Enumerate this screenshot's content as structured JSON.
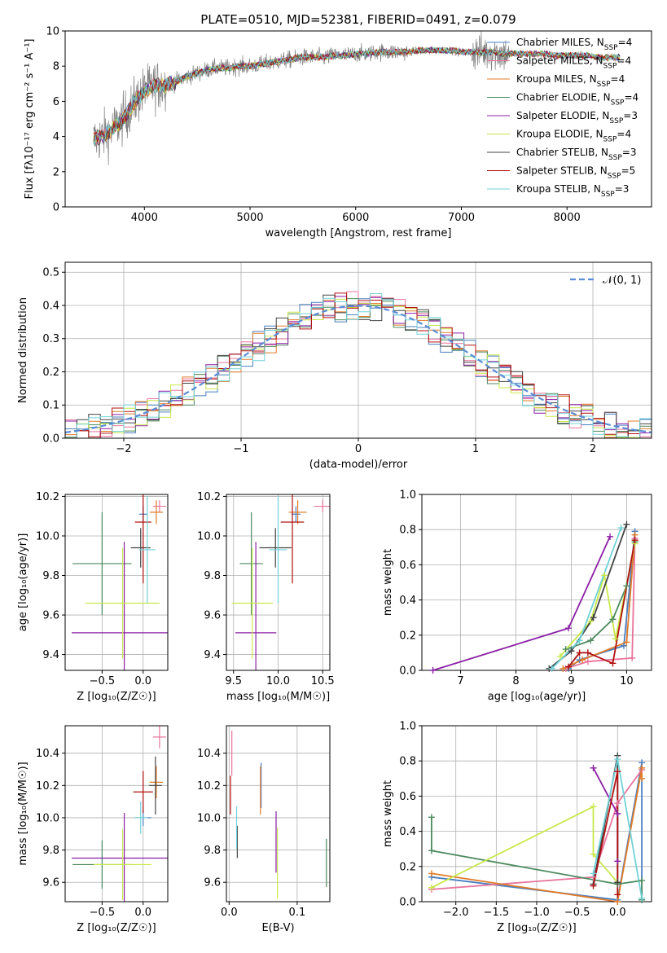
{
  "figure": {
    "title": "PLATE=0510, MJD=52381, FIBERID=0491, z=0.079"
  },
  "models": [
    {
      "name": "Chabrier MILES",
      "nssp": "4",
      "color": "#4a7fc1"
    },
    {
      "name": "Salpeter MILES",
      "nssp": "4",
      "color": "#e8739c"
    },
    {
      "name": "Kroupa MILES",
      "nssp": "4",
      "color": "#e07b2a"
    },
    {
      "name": "Chabrier ELODIE",
      "nssp": "4",
      "color": "#4d8a5f"
    },
    {
      "name": "Salpeter ELODIE",
      "nssp": "3",
      "color": "#8b1fa5"
    },
    {
      "name": "Kroupa ELODIE",
      "nssp": "4",
      "color": "#c8e84a"
    },
    {
      "name": "Chabrier STELIB",
      "nssp": "3",
      "color": "#444444"
    },
    {
      "name": "Salpeter STELIB",
      "nssp": "5",
      "color": "#b01010"
    },
    {
      "name": "Kroupa STELIB",
      "nssp": "3",
      "color": "#70d2d8"
    }
  ],
  "chart_data": [
    {
      "id": "spectrum",
      "type": "line",
      "title": "PLATE=0510, MJD=52381, FIBERID=0491, z=0.079",
      "xlabel": "wavelength [Angstrom, rest frame]",
      "ylabel": "Flux [fλ10⁻¹⁷ erg cm⁻² s⁻¹ A⁻¹]",
      "xlim": [
        3250,
        8800
      ],
      "ylim": [
        0,
        10
      ],
      "xticks": [
        4000,
        5000,
        6000,
        7000,
        8000
      ],
      "yticks": [
        0,
        2,
        4,
        6,
        8,
        10
      ],
      "legend": "top-right",
      "continuum": {
        "x": [
          3520,
          3600,
          3700,
          3800,
          3900,
          4000,
          4100,
          4200,
          4300,
          4400,
          4500,
          4600,
          4700,
          4800,
          4900,
          5000,
          5100,
          5200,
          5300,
          5400,
          5500,
          5600,
          5700,
          5800,
          5900,
          6000,
          6100,
          6200,
          6300,
          6400,
          6500,
          6600,
          6700,
          6800,
          6900,
          7000,
          7100,
          7200,
          7300,
          7400,
          7500,
          7600,
          7700,
          7800,
          7900,
          8000,
          8100,
          8200,
          8300,
          8400,
          8500
        ],
        "y": [
          3.8,
          4.0,
          4.4,
          5.0,
          5.9,
          6.6,
          6.9,
          6.9,
          7.1,
          7.4,
          7.6,
          7.8,
          7.9,
          7.9,
          8.0,
          8.0,
          8.1,
          8.2,
          8.3,
          8.4,
          8.5,
          8.5,
          8.5,
          8.6,
          8.6,
          8.7,
          8.7,
          8.8,
          8.8,
          8.8,
          8.8,
          8.9,
          8.9,
          8.9,
          8.9,
          8.8,
          8.8,
          8.8,
          8.8,
          8.7,
          8.7,
          8.7,
          8.7,
          8.7,
          8.6,
          8.6,
          8.6,
          8.6,
          8.5,
          8.5,
          8.5
        ]
      }
    },
    {
      "id": "residuals",
      "type": "line",
      "xlabel": "(data-model)/error",
      "ylabel": "Normed distribution",
      "xlim": [
        -2.5,
        2.5
      ],
      "ylim": [
        0,
        0.53
      ],
      "xticks": [
        -2,
        -1,
        0,
        1,
        2
      ],
      "yticks": [
        0.0,
        0.1,
        0.2,
        0.3,
        0.4,
        0.5
      ],
      "legend": "top-right",
      "reference_label": "𝒩(0, 1)",
      "reference_color": "#5b8cd6",
      "bin_edges": [
        -2.5,
        -2.4,
        -2.3,
        -2.2,
        -2.1,
        -2.0,
        -1.9,
        -1.8,
        -1.7,
        -1.6,
        -1.5,
        -1.4,
        -1.3,
        -1.2,
        -1.1,
        -1.0,
        -0.9,
        -0.8,
        -0.7,
        -0.6,
        -0.5,
        -0.4,
        -0.3,
        -0.2,
        -0.1,
        0.0,
        0.1,
        0.2,
        0.3,
        0.4,
        0.5,
        0.6,
        0.7,
        0.8,
        0.9,
        1.0,
        1.1,
        1.2,
        1.3,
        1.4,
        1.5,
        1.6,
        1.7,
        1.8,
        1.9,
        2.0,
        2.1,
        2.2,
        2.3,
        2.4,
        2.5
      ]
    },
    {
      "id": "age-vs-Z",
      "type": "scatter",
      "xlabel": "Z [log₁₀(Z/Z☉)]",
      "ylabel": "age  [log₁₀(age/yr)]",
      "xlim": [
        -0.95,
        0.3
      ],
      "ylim": [
        9.32,
        10.21
      ],
      "xticks": [
        -0.5,
        0.0
      ],
      "yticks": [
        9.4,
        9.6,
        9.8,
        10.0,
        10.2
      ],
      "points": [
        {
          "model": 0,
          "x": 0.0,
          "xerr": 0.05,
          "y": 10.11,
          "yerr": 0.04
        },
        {
          "model": 1,
          "x": 0.2,
          "xerr": 0.08,
          "y": 10.15,
          "yerr": 0.03
        },
        {
          "model": 2,
          "x": 0.16,
          "xerr": 0.08,
          "y": 10.12,
          "yerr": 0.06
        },
        {
          "model": 3,
          "x": -0.5,
          "xerr": 0.36,
          "y": 9.86,
          "yerr": 0.26
        },
        {
          "model": 4,
          "x": -0.23,
          "xerr": 0.64,
          "y": 9.51,
          "yerr": 0.46
        },
        {
          "model": 5,
          "x": -0.25,
          "xerr": 0.45,
          "y": 9.66,
          "yerr": 0.28
        },
        {
          "model": 6,
          "x": -0.03,
          "xerr": 0.12,
          "y": 9.94,
          "yerr": 0.1
        },
        {
          "model": 7,
          "x": 0.0,
          "xerr": 0.1,
          "y": 10.07,
          "yerr": 0.31
        },
        {
          "model": 8,
          "x": 0.05,
          "xerr": 0.1,
          "y": 9.93,
          "yerr": 0.27
        }
      ]
    },
    {
      "id": "age-vs-mass",
      "type": "scatter",
      "xlabel": "mass [log₁₀(M/M☉)]",
      "ylabel": "",
      "xlim": [
        9.42,
        10.58
      ],
      "ylim": [
        9.32,
        10.21
      ],
      "xticks": [
        9.5,
        10.0,
        10.5
      ],
      "yticks": [
        9.4,
        9.6,
        9.8,
        10.0,
        10.2
      ],
      "points": [
        {
          "model": 0,
          "x": 10.2,
          "xerr": 0.05,
          "y": 10.11,
          "yerr": 0.04
        },
        {
          "model": 1,
          "x": 10.5,
          "xerr": 0.1,
          "y": 10.15,
          "yerr": 0.03
        },
        {
          "model": 2,
          "x": 10.22,
          "xerr": 0.1,
          "y": 10.12,
          "yerr": 0.06
        },
        {
          "model": 3,
          "x": 9.7,
          "xerr": 0.13,
          "y": 9.86,
          "yerr": 0.26
        },
        {
          "model": 4,
          "x": 9.75,
          "xerr": 0.23,
          "y": 9.51,
          "yerr": 0.46
        },
        {
          "model": 5,
          "x": 9.71,
          "xerr": 0.23,
          "y": 9.66,
          "yerr": 0.28
        },
        {
          "model": 6,
          "x": 9.97,
          "xerr": 0.18,
          "y": 9.94,
          "yerr": 0.1
        },
        {
          "model": 7,
          "x": 10.16,
          "xerr": 0.13,
          "y": 10.07,
          "yerr": 0.31
        },
        {
          "model": 8,
          "x": 10.0,
          "xerr": 0.1,
          "y": 9.93,
          "yerr": 0.27
        }
      ]
    },
    {
      "id": "weight-vs-age",
      "type": "line",
      "xlabel": "age  [log₁₀(age/yr)]",
      "ylabel": "mass weight",
      "xlim": [
        6.3,
        10.45
      ],
      "ylim": [
        0,
        1.0
      ],
      "xticks": [
        7,
        8,
        9,
        10
      ],
      "yticks": [
        0.0,
        0.2,
        0.4,
        0.6,
        0.8,
        1.0
      ],
      "series": [
        {
          "model": 0,
          "x": [
            8.95,
            9.15,
            9.95,
            10.15
          ],
          "y": [
            0.01,
            0.06,
            0.14,
            0.79
          ]
        },
        {
          "model": 1,
          "x": [
            8.9,
            9.3,
            10.1,
            10.15
          ],
          "y": [
            0.01,
            0.05,
            0.07,
            0.75
          ]
        },
        {
          "model": 2,
          "x": [
            8.85,
            9.2,
            10.0,
            10.15
          ],
          "y": [
            0.01,
            0.06,
            0.16,
            0.77
          ]
        },
        {
          "model": 3,
          "x": [
            8.9,
            9.35,
            9.75,
            10.0,
            10.15
          ],
          "y": [
            0.12,
            0.17,
            0.29,
            0.48,
            0.73
          ]
        },
        {
          "model": 4,
          "x": [
            6.5,
            8.95,
            9.7
          ],
          "y": [
            0.0,
            0.24,
            0.76
          ]
        },
        {
          "model": 5,
          "x": [
            8.8,
            9.35,
            9.6,
            9.8,
            10.15
          ],
          "y": [
            0.08,
            0.28,
            0.54,
            0.18,
            0.72
          ]
        },
        {
          "model": 6,
          "x": [
            8.6,
            9.0,
            9.4,
            10.0
          ],
          "y": [
            0.01,
            0.11,
            0.3,
            0.83
          ]
        },
        {
          "model": 7,
          "x": [
            8.95,
            9.15,
            9.3,
            9.75,
            10.15
          ],
          "y": [
            0.02,
            0.1,
            0.1,
            0.04,
            0.74
          ]
        },
        {
          "model": 8,
          "x": [
            8.65,
            9.15,
            9.9
          ],
          "y": [
            0.01,
            0.17,
            0.81
          ]
        }
      ]
    },
    {
      "id": "mass-vs-Z",
      "type": "scatter",
      "xlabel": "Z [log₁₀(Z/Z☉)]",
      "ylabel": "mass [log₁₀(M/M☉)]",
      "xlim": [
        -0.95,
        0.3
      ],
      "ylim": [
        9.48,
        10.57
      ],
      "xticks": [
        -0.5,
        0.0
      ],
      "yticks": [
        9.6,
        9.8,
        10.0,
        10.2,
        10.4
      ],
      "points": [
        {
          "model": 0,
          "x": 0.0,
          "xerr": 0.1,
          "y": 10.0,
          "yerr": 0.05
        },
        {
          "model": 1,
          "x": 0.2,
          "xerr": 0.08,
          "y": 10.5,
          "yerr": 0.07
        },
        {
          "model": 2,
          "x": 0.16,
          "xerr": 0.08,
          "y": 10.22,
          "yerr": 0.1
        },
        {
          "model": 3,
          "x": -0.5,
          "xerr": 0.36,
          "y": 9.71,
          "yerr": 0.15
        },
        {
          "model": 4,
          "x": -0.23,
          "xerr": 0.64,
          "y": 9.75,
          "yerr": 0.28
        },
        {
          "model": 5,
          "x": -0.25,
          "xerr": 0.35,
          "y": 9.71,
          "yerr": 0.22
        },
        {
          "model": 6,
          "x": 0.15,
          "xerr": 0.08,
          "y": 10.2,
          "yerr": 0.18
        },
        {
          "model": 7,
          "x": 0.0,
          "xerr": 0.12,
          "y": 10.16,
          "yerr": 0.13
        },
        {
          "model": 8,
          "x": -0.03,
          "xerr": 0.08,
          "y": 10.0,
          "yerr": 0.1
        }
      ]
    },
    {
      "id": "mass-vs-EBV",
      "type": "scatter",
      "xlabel": "E(B-V)",
      "ylabel": "",
      "xlim": [
        -0.004,
        0.148
      ],
      "ylim": [
        9.48,
        10.57
      ],
      "xticks": [
        0.0,
        0.1
      ],
      "yticks": [
        9.6,
        9.8,
        10.0,
        10.2,
        10.4
      ],
      "points": [
        {
          "model": 0,
          "x": 0.047,
          "y": 10.2,
          "yerr": 0.14
        },
        {
          "model": 1,
          "x": 0.004,
          "y": 10.4,
          "yerr": 0.14
        },
        {
          "model": 2,
          "x": 0.046,
          "y": 10.17,
          "yerr": 0.15
        },
        {
          "model": 3,
          "x": 0.143,
          "y": 9.72,
          "yerr": 0.15
        },
        {
          "model": 4,
          "x": 0.069,
          "y": 9.85,
          "yerr": 0.19
        },
        {
          "model": 5,
          "x": 0.071,
          "y": 9.72,
          "yerr": 0.22
        },
        {
          "model": 6,
          "x": 0.012,
          "y": 9.85,
          "yerr": 0.1
        },
        {
          "model": 7,
          "x": 0.002,
          "y": 10.14,
          "yerr": 0.12
        },
        {
          "model": 8,
          "x": 0.011,
          "y": 9.94,
          "yerr": 0.13
        }
      ]
    },
    {
      "id": "weight-vs-Z",
      "type": "line",
      "xlabel": "Z [log₁₀(Z/Z☉)]",
      "ylabel": "mass weight",
      "xlim": [
        -2.42,
        0.42
      ],
      "ylim": [
        0,
        1.0
      ],
      "xticks": [
        -2.0,
        -1.5,
        -1.0,
        -0.5,
        0.0
      ],
      "yticks": [
        0.0,
        0.2,
        0.4,
        0.6,
        0.8,
        1.0
      ],
      "series": [
        {
          "model": 0,
          "x": [
            -2.3,
            0.0,
            0.3,
            0.3
          ],
          "y": [
            0.14,
            0.01,
            0.79,
            0.01
          ]
        },
        {
          "model": 1,
          "x": [
            -2.3,
            -0.3,
            0.0,
            0.3
          ],
          "y": [
            0.07,
            0.14,
            0.56,
            0.75
          ]
        },
        {
          "model": 2,
          "x": [
            -2.3,
            0.0,
            0.3,
            0.3
          ],
          "y": [
            0.16,
            0.0,
            0.76,
            0.7
          ]
        },
        {
          "model": 3,
          "x": [
            -2.3,
            -2.3,
            0.0,
            0.3,
            0.3
          ],
          "y": [
            0.48,
            0.29,
            0.1,
            0.12,
            0.01
          ]
        },
        {
          "model": 4,
          "x": [
            -0.3,
            0.0,
            0.0
          ],
          "y": [
            0.76,
            0.5,
            0.23
          ]
        },
        {
          "model": 5,
          "x": [
            -2.3,
            -0.3,
            -0.3,
            0.0
          ],
          "y": [
            0.08,
            0.54,
            0.27,
            0.11
          ]
        },
        {
          "model": 6,
          "x": [
            -0.3,
            0.0,
            0.0
          ],
          "y": [
            0.1,
            0.83,
            0.11
          ]
        },
        {
          "model": 7,
          "x": [
            -0.3,
            0.0,
            0.0
          ],
          "y": [
            0.09,
            0.74,
            0.04
          ]
        },
        {
          "model": 8,
          "x": [
            -0.3,
            0.0,
            0.3
          ],
          "y": [
            0.16,
            0.81,
            0.02
          ]
        }
      ]
    }
  ]
}
